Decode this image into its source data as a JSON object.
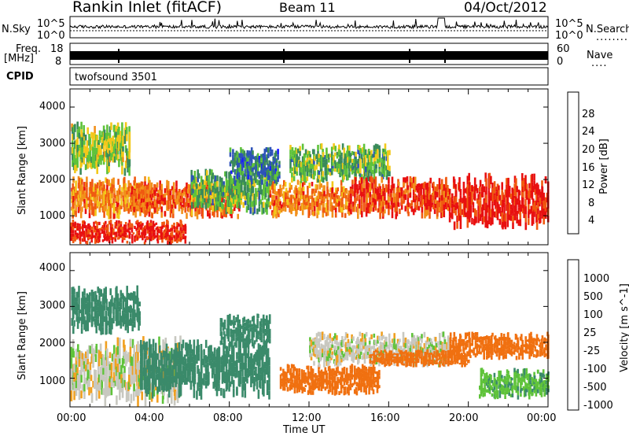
{
  "header": {
    "title_left": "Rankin Inlet (fitACF)",
    "title_center": "Beam 11",
    "title_right": "04/Oct/2012"
  },
  "top_panels": {
    "nsky_label": "N.Sky",
    "nsearch_label": "N.Search",
    "nsearch_dots": "........",
    "log_ticks_left": [
      "10^5",
      "10^0"
    ],
    "log_ticks_right": [
      "10^5",
      "10^0"
    ],
    "freq_label": "Freq.",
    "freq_unit": "[MHz]",
    "freq_ticks": [
      "18",
      "8"
    ],
    "nave_label": "Nave",
    "nave_dots": "....",
    "nave_ticks": [
      "60",
      "0"
    ],
    "cpid_label": "CPID",
    "cpid_value": "twofsound 3501"
  },
  "power_colorbar": {
    "label": "Power [dB]",
    "ticks": [
      "28",
      "24",
      "20",
      "16",
      "12",
      "8",
      "4"
    ],
    "colors": [
      "#1a1aff",
      "#2d53b8",
      "#3a8a5a",
      "#5fc33a",
      "#f2c81a",
      "#f2901a",
      "#f05a10",
      "#e81010"
    ]
  },
  "velocity_colorbar": {
    "label": "Velocity [m s^-1]",
    "ticks": [
      "1000",
      "500",
      "100",
      "25",
      "-25",
      "-100",
      "-500",
      "-1000"
    ],
    "colors": [
      "#2040c0",
      "#2f6fa8",
      "#3a8a6a",
      "#5fc33a",
      "#c8c8c0",
      "#f0a020",
      "#f07010",
      "#e84010",
      "#e81010"
    ]
  },
  "axes": {
    "ylabel": "Slant Range [km]",
    "yticks": [
      "4000",
      "3000",
      "2000",
      "1000"
    ],
    "xticks": [
      "00:00",
      "04:00",
      "08:00",
      "12:00",
      "16:00",
      "20:00",
      "00:00"
    ],
    "xlabel": "Time UT"
  },
  "chart_data": [
    {
      "type": "heatmap",
      "name": "power",
      "x_range_hours": [
        0,
        24
      ],
      "y_range_km": [
        200,
        4500
      ],
      "z_ticks_db": [
        4,
        8,
        12,
        16,
        20,
        24,
        28
      ],
      "z_range": [
        0,
        30
      ],
      "blobs": [
        {
          "t0": 0.0,
          "t1": 5.8,
          "r0": 200,
          "r1": 900,
          "z": 28
        },
        {
          "t0": 0.0,
          "t1": 4.0,
          "r0": 900,
          "r1": 2100,
          "z": 22
        },
        {
          "t0": 0.0,
          "t1": 3.0,
          "r0": 2100,
          "r1": 3600,
          "z": 14
        },
        {
          "t0": 3.0,
          "t1": 8.5,
          "r0": 900,
          "r1": 2000,
          "z": 24
        },
        {
          "t0": 6.0,
          "t1": 10.0,
          "r0": 1000,
          "r1": 2300,
          "z": 12
        },
        {
          "t0": 8.0,
          "t1": 10.5,
          "r0": 1800,
          "r1": 2900,
          "z": 8
        },
        {
          "t0": 10.0,
          "t1": 14.0,
          "r0": 900,
          "r1": 2000,
          "z": 22
        },
        {
          "t0": 11.0,
          "t1": 16.0,
          "r0": 1900,
          "r1": 3000,
          "z": 12
        },
        {
          "t0": 14.0,
          "t1": 19.0,
          "r0": 900,
          "r1": 2100,
          "z": 26
        },
        {
          "t0": 19.0,
          "t1": 24.0,
          "r0": 600,
          "r1": 2200,
          "z": 28
        }
      ]
    },
    {
      "type": "heatmap",
      "name": "velocity",
      "x_range_hours": [
        0,
        24
      ],
      "y_range_km": [
        200,
        4500
      ],
      "z_ticks_ms": [
        -1000,
        -500,
        -100,
        -25,
        25,
        100,
        500,
        1000
      ],
      "blobs": [
        {
          "t0": 0.0,
          "t1": 5.5,
          "r0": 200,
          "r1": 2200,
          "z": 0
        },
        {
          "t0": 0.0,
          "t1": 3.5,
          "r0": 2200,
          "r1": 3600,
          "z": 150
        },
        {
          "t0": 3.5,
          "t1": 10.0,
          "r0": 400,
          "r1": 2100,
          "z": 300
        },
        {
          "t0": 7.5,
          "t1": 10.0,
          "r0": 1800,
          "r1": 2800,
          "z": 200
        },
        {
          "t0": 10.5,
          "t1": 15.5,
          "r0": 500,
          "r1": 1400,
          "z": -300
        },
        {
          "t0": 12.0,
          "t1": 19.0,
          "r0": 1300,
          "r1": 2300,
          "z": 0
        },
        {
          "t0": 15.0,
          "t1": 20.0,
          "r0": 1300,
          "r1": 1800,
          "z": -300
        },
        {
          "t0": 19.0,
          "t1": 24.0,
          "r0": 1500,
          "r1": 2300,
          "z": -200
        },
        {
          "t0": 20.5,
          "t1": 24.0,
          "r0": 400,
          "r1": 1300,
          "z": 80
        }
      ]
    }
  ]
}
